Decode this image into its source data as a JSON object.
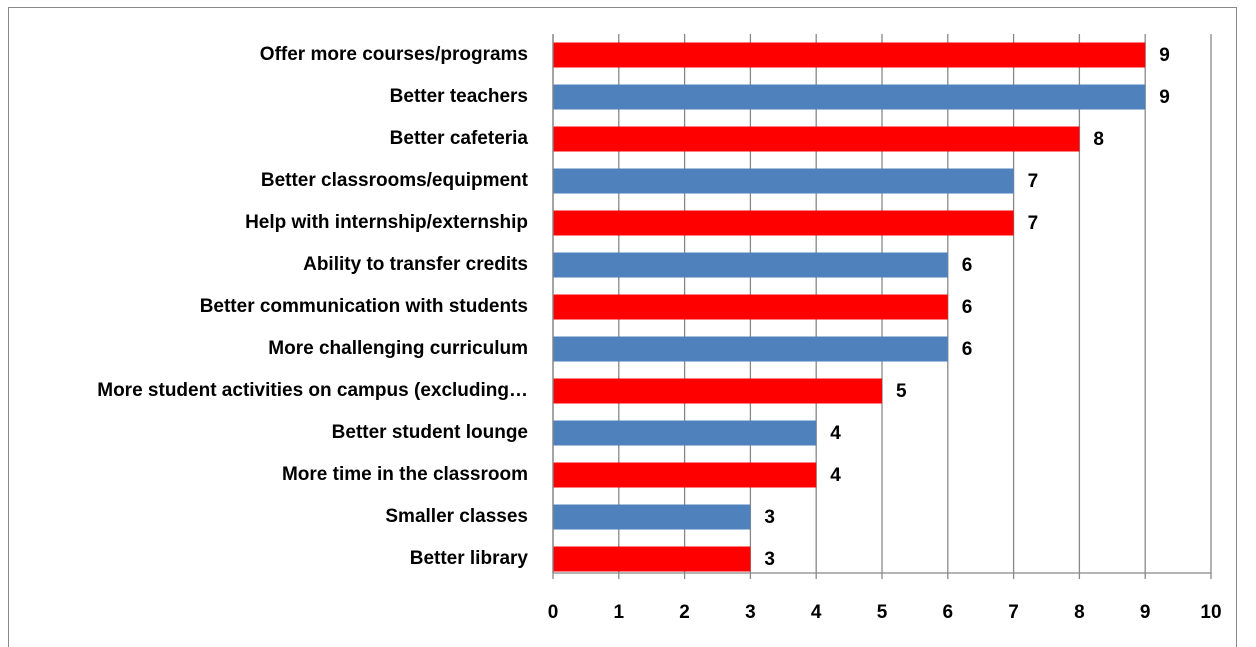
{
  "chart_data": {
    "type": "barh",
    "categories": [
      "Offer more courses/programs",
      "Better teachers",
      "Better cafeteria",
      "Better classrooms/equipment",
      "Help with internship/externship",
      "Ability to transfer credits",
      "Better communication with students",
      "More challenging curriculum",
      "More student activities on campus (excluding…",
      "Better student lounge",
      "More time in the classroom",
      "Smaller classes",
      "Better library"
    ],
    "values": [
      9,
      9,
      8,
      7,
      7,
      6,
      6,
      6,
      5,
      4,
      4,
      3,
      3
    ],
    "colors": [
      "#ff0000",
      "#4f81bd",
      "#ff0000",
      "#4f81bd",
      "#ff0000",
      "#4f81bd",
      "#ff0000",
      "#4f81bd",
      "#ff0000",
      "#4f81bd",
      "#ff0000",
      "#4f81bd",
      "#ff0000"
    ],
    "xlim": [
      0,
      10
    ],
    "xticks": [
      0,
      1,
      2,
      3,
      4,
      5,
      6,
      7,
      8,
      9,
      10
    ],
    "grid": true
  }
}
